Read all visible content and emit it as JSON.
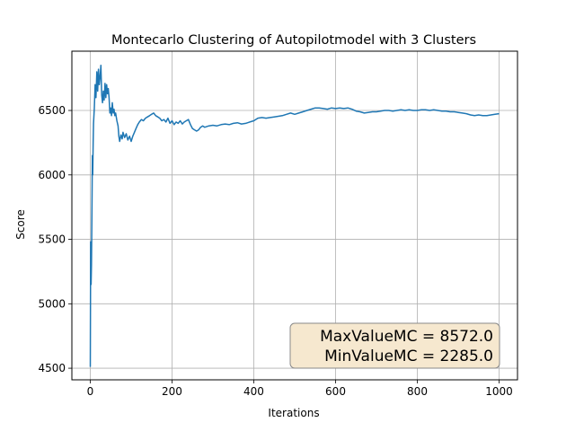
{
  "chart_data": {
    "type": "line",
    "title": "Montecarlo Clustering of Autopilotmodel with 3 Clusters",
    "xlabel": "Iterations",
    "ylabel": "Score",
    "xlim": [
      -45,
      1045
    ],
    "ylim": [
      4410,
      6960
    ],
    "xticks": [
      0,
      200,
      400,
      600,
      800,
      1000
    ],
    "yticks": [
      4500,
      5000,
      5500,
      6000,
      6500
    ],
    "grid": true,
    "line_color": "#1f77b4",
    "series": [
      {
        "name": "",
        "points": [
          [
            0,
            4510
          ],
          [
            1,
            5480
          ],
          [
            2,
            5150
          ],
          [
            3,
            5300
          ],
          [
            4,
            5700
          ],
          [
            5,
            6150
          ],
          [
            6,
            6000
          ],
          [
            7,
            6250
          ],
          [
            8,
            6400
          ],
          [
            10,
            6520
          ],
          [
            12,
            6700
          ],
          [
            14,
            6600
          ],
          [
            16,
            6800
          ],
          [
            18,
            6650
          ],
          [
            20,
            6820
          ],
          [
            22,
            6700
          ],
          [
            24,
            6760
          ],
          [
            26,
            6850
          ],
          [
            28,
            6620
          ],
          [
            30,
            6560
          ],
          [
            32,
            6650
          ],
          [
            34,
            6580
          ],
          [
            36,
            6710
          ],
          [
            38,
            6600
          ],
          [
            40,
            6700
          ],
          [
            42,
            6630
          ],
          [
            44,
            6670
          ],
          [
            46,
            6600
          ],
          [
            48,
            6480
          ],
          [
            50,
            6520
          ],
          [
            52,
            6460
          ],
          [
            54,
            6560
          ],
          [
            56,
            6480
          ],
          [
            58,
            6510
          ],
          [
            60,
            6460
          ],
          [
            62,
            6480
          ],
          [
            65,
            6420
          ],
          [
            68,
            6380
          ],
          [
            70,
            6300
          ],
          [
            72,
            6260
          ],
          [
            75,
            6310
          ],
          [
            78,
            6280
          ],
          [
            80,
            6330
          ],
          [
            84,
            6290
          ],
          [
            88,
            6320
          ],
          [
            92,
            6270
          ],
          [
            96,
            6300
          ],
          [
            100,
            6260
          ],
          [
            104,
            6300
          ],
          [
            108,
            6330
          ],
          [
            112,
            6360
          ],
          [
            116,
            6390
          ],
          [
            120,
            6410
          ],
          [
            125,
            6430
          ],
          [
            130,
            6420
          ],
          [
            135,
            6440
          ],
          [
            140,
            6450
          ],
          [
            145,
            6460
          ],
          [
            150,
            6470
          ],
          [
            155,
            6480
          ],
          [
            160,
            6460
          ],
          [
            165,
            6450
          ],
          [
            170,
            6440
          ],
          [
            175,
            6420
          ],
          [
            180,
            6430
          ],
          [
            185,
            6410
          ],
          [
            190,
            6440
          ],
          [
            195,
            6400
          ],
          [
            200,
            6420
          ],
          [
            205,
            6390
          ],
          [
            210,
            6410
          ],
          [
            215,
            6400
          ],
          [
            220,
            6420
          ],
          [
            225,
            6395
          ],
          [
            230,
            6410
          ],
          [
            235,
            6420
          ],
          [
            240,
            6430
          ],
          [
            245,
            6390
          ],
          [
            250,
            6360
          ],
          [
            255,
            6350
          ],
          [
            260,
            6340
          ],
          [
            265,
            6350
          ],
          [
            270,
            6370
          ],
          [
            275,
            6380
          ],
          [
            280,
            6370
          ],
          [
            290,
            6380
          ],
          [
            300,
            6385
          ],
          [
            310,
            6380
          ],
          [
            320,
            6390
          ],
          [
            330,
            6395
          ],
          [
            340,
            6390
          ],
          [
            350,
            6400
          ],
          [
            360,
            6405
          ],
          [
            370,
            6395
          ],
          [
            380,
            6400
          ],
          [
            390,
            6410
          ],
          [
            400,
            6420
          ],
          [
            410,
            6440
          ],
          [
            420,
            6445
          ],
          [
            430,
            6440
          ],
          [
            440,
            6445
          ],
          [
            450,
            6450
          ],
          [
            460,
            6455
          ],
          [
            470,
            6460
          ],
          [
            480,
            6470
          ],
          [
            490,
            6480
          ],
          [
            500,
            6470
          ],
          [
            510,
            6480
          ],
          [
            520,
            6490
          ],
          [
            530,
            6500
          ],
          [
            540,
            6510
          ],
          [
            550,
            6520
          ],
          [
            560,
            6520
          ],
          [
            570,
            6515
          ],
          [
            580,
            6510
          ],
          [
            590,
            6520
          ],
          [
            600,
            6515
          ],
          [
            610,
            6520
          ],
          [
            620,
            6515
          ],
          [
            630,
            6520
          ],
          [
            640,
            6510
          ],
          [
            650,
            6495
          ],
          [
            660,
            6490
          ],
          [
            670,
            6480
          ],
          [
            680,
            6485
          ],
          [
            690,
            6490
          ],
          [
            700,
            6490
          ],
          [
            710,
            6495
          ],
          [
            720,
            6500
          ],
          [
            730,
            6500
          ],
          [
            740,
            6495
          ],
          [
            750,
            6500
          ],
          [
            760,
            6505
          ],
          [
            770,
            6500
          ],
          [
            780,
            6505
          ],
          [
            790,
            6500
          ],
          [
            800,
            6500
          ],
          [
            810,
            6505
          ],
          [
            820,
            6505
          ],
          [
            830,
            6500
          ],
          [
            840,
            6505
          ],
          [
            850,
            6500
          ],
          [
            860,
            6495
          ],
          [
            870,
            6495
          ],
          [
            880,
            6490
          ],
          [
            890,
            6490
          ],
          [
            900,
            6485
          ],
          [
            910,
            6480
          ],
          [
            920,
            6475
          ],
          [
            930,
            6465
          ],
          [
            940,
            6460
          ],
          [
            950,
            6465
          ],
          [
            960,
            6460
          ],
          [
            970,
            6460
          ],
          [
            980,
            6465
          ],
          [
            990,
            6470
          ],
          [
            1000,
            6475
          ]
        ]
      }
    ],
    "annotation": {
      "lines": [
        "MaxValueMC = 8572.0",
        "MinValueMC = 2285.0"
      ],
      "placement": "bottom-right",
      "background": "#f6e8cf",
      "border": "#8a8a8a"
    }
  }
}
